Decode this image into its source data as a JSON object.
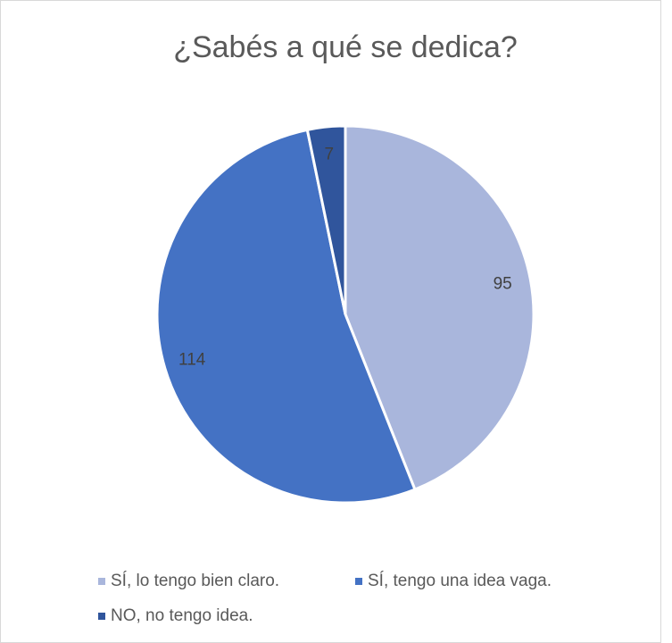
{
  "chart_data": {
    "type": "pie",
    "title": "¿Sabés a qué se dedica?",
    "categories": [
      "SÍ, lo tengo bien claro.",
      "SÍ, tengo una idea vaga.",
      "NO, no tengo idea."
    ],
    "values": [
      95,
      114,
      7
    ],
    "colors": [
      "#a9b6dc",
      "#4472c4",
      "#30559c"
    ]
  }
}
